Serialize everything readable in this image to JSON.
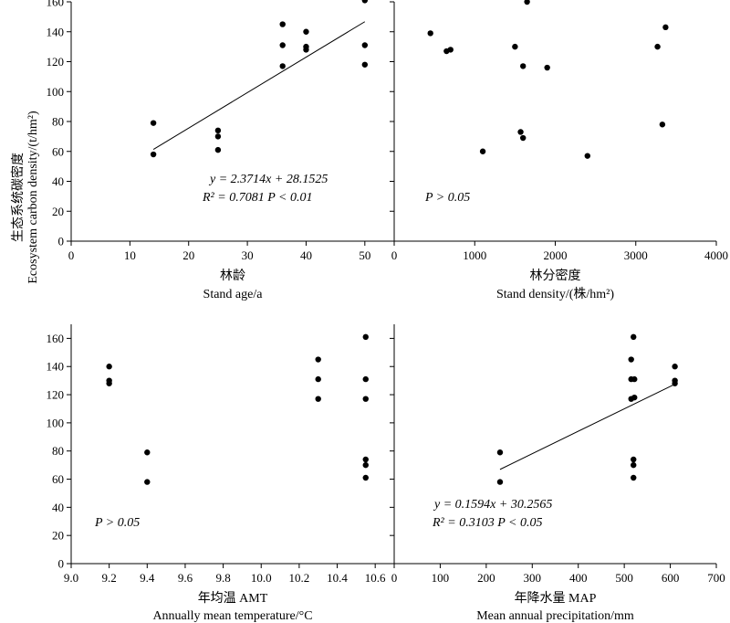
{
  "ylabel_zh": "生态系统碳密度",
  "ylabel_en": "Ecosystem carbon density/(t/hm²)",
  "chart_data": [
    {
      "type": "scatter",
      "panel": "top-left",
      "xlabel_zh": "林龄",
      "xlabel_en": "Stand age/a",
      "xlim": [
        0,
        55
      ],
      "ylim": [
        0,
        160
      ],
      "xticks": [
        0,
        10,
        20,
        30,
        40,
        50
      ],
      "yticks": [
        0,
        20,
        40,
        60,
        80,
        100,
        120,
        140,
        160
      ],
      "points": [
        [
          14,
          79
        ],
        [
          14,
          58
        ],
        [
          25,
          74
        ],
        [
          25,
          70
        ],
        [
          25,
          61
        ],
        [
          36,
          145
        ],
        [
          36,
          131
        ],
        [
          36,
          117
        ],
        [
          40,
          140
        ],
        [
          40,
          130
        ],
        [
          40,
          128
        ],
        [
          50,
          161
        ],
        [
          50,
          131
        ],
        [
          50,
          118
        ]
      ],
      "fit": {
        "slope": 2.3714,
        "intercept": 28.1525,
        "x_range": [
          14,
          50
        ]
      },
      "annotations": [
        "y = 2.3714x + 28.1525",
        "R² = 0.7081    P < 0.01"
      ]
    },
    {
      "type": "scatter",
      "panel": "top-right",
      "xlabel_zh": "林分密度",
      "xlabel_en": "Stand density/(株/hm²)",
      "xlim": [
        0,
        4000
      ],
      "ylim": [
        0,
        160
      ],
      "xticks": [
        0,
        1000,
        2000,
        3000,
        4000
      ],
      "yticks": [
        0,
        20,
        40,
        60,
        80,
        100,
        120,
        140,
        160
      ],
      "points": [
        [
          450,
          139
        ],
        [
          650,
          127
        ],
        [
          700,
          128
        ],
        [
          1100,
          60
        ],
        [
          1500,
          130
        ],
        [
          1570,
          73
        ],
        [
          1600,
          69
        ],
        [
          1600,
          117
        ],
        [
          1650,
          160
        ],
        [
          1900,
          116
        ],
        [
          2400,
          57
        ],
        [
          3270,
          130
        ],
        [
          3330,
          78
        ],
        [
          3370,
          143
        ]
      ],
      "annotations": [
        "P > 0.05"
      ]
    },
    {
      "type": "scatter",
      "panel": "bottom-left",
      "xlabel_zh": "年均温 AMT",
      "xlabel_en": "Annually mean temperature/°C",
      "xlim": [
        9.0,
        10.7
      ],
      "ylim": [
        0,
        170
      ],
      "xticks": [
        "9.0",
        "9.2",
        "9.4",
        "9.6",
        "9.8",
        "10.0",
        "10.2",
        "10.4",
        "10.6"
      ],
      "yticks": [
        0,
        20,
        40,
        60,
        80,
        100,
        120,
        140,
        160
      ],
      "points": [
        [
          9.2,
          140
        ],
        [
          9.2,
          130
        ],
        [
          9.2,
          128
        ],
        [
          9.4,
          79
        ],
        [
          9.4,
          58
        ],
        [
          10.3,
          145
        ],
        [
          10.3,
          131
        ],
        [
          10.3,
          117
        ],
        [
          10.55,
          161
        ],
        [
          10.55,
          131
        ],
        [
          10.55,
          117
        ],
        [
          10.55,
          74
        ],
        [
          10.55,
          70
        ],
        [
          10.55,
          61
        ]
      ],
      "annotations": [
        "P > 0.05"
      ]
    },
    {
      "type": "scatter",
      "panel": "bottom-right",
      "xlabel_zh": "年降水量 MAP",
      "xlabel_en": "Mean annual precipitation/mm",
      "xlim": [
        0,
        700
      ],
      "ylim": [
        0,
        170
      ],
      "xticks": [
        0,
        100,
        200,
        300,
        400,
        500,
        600,
        700
      ],
      "yticks": [
        0,
        20,
        40,
        60,
        80,
        100,
        120,
        140,
        160
      ],
      "points": [
        [
          230,
          79
        ],
        [
          230,
          58
        ],
        [
          515,
          145
        ],
        [
          515,
          131
        ],
        [
          515,
          117
        ],
        [
          520,
          161
        ],
        [
          520,
          74
        ],
        [
          520,
          70
        ],
        [
          520,
          61
        ],
        [
          522,
          131
        ],
        [
          522,
          118
        ],
        [
          610,
          140
        ],
        [
          610,
          130
        ],
        [
          610,
          128
        ]
      ],
      "fit": {
        "slope": 0.1594,
        "intercept": 30.2565,
        "x_range": [
          230,
          610
        ]
      },
      "annotations": [
        "y = 0.1594x + 30.2565",
        "R² = 0.3103    P < 0.05"
      ]
    }
  ]
}
